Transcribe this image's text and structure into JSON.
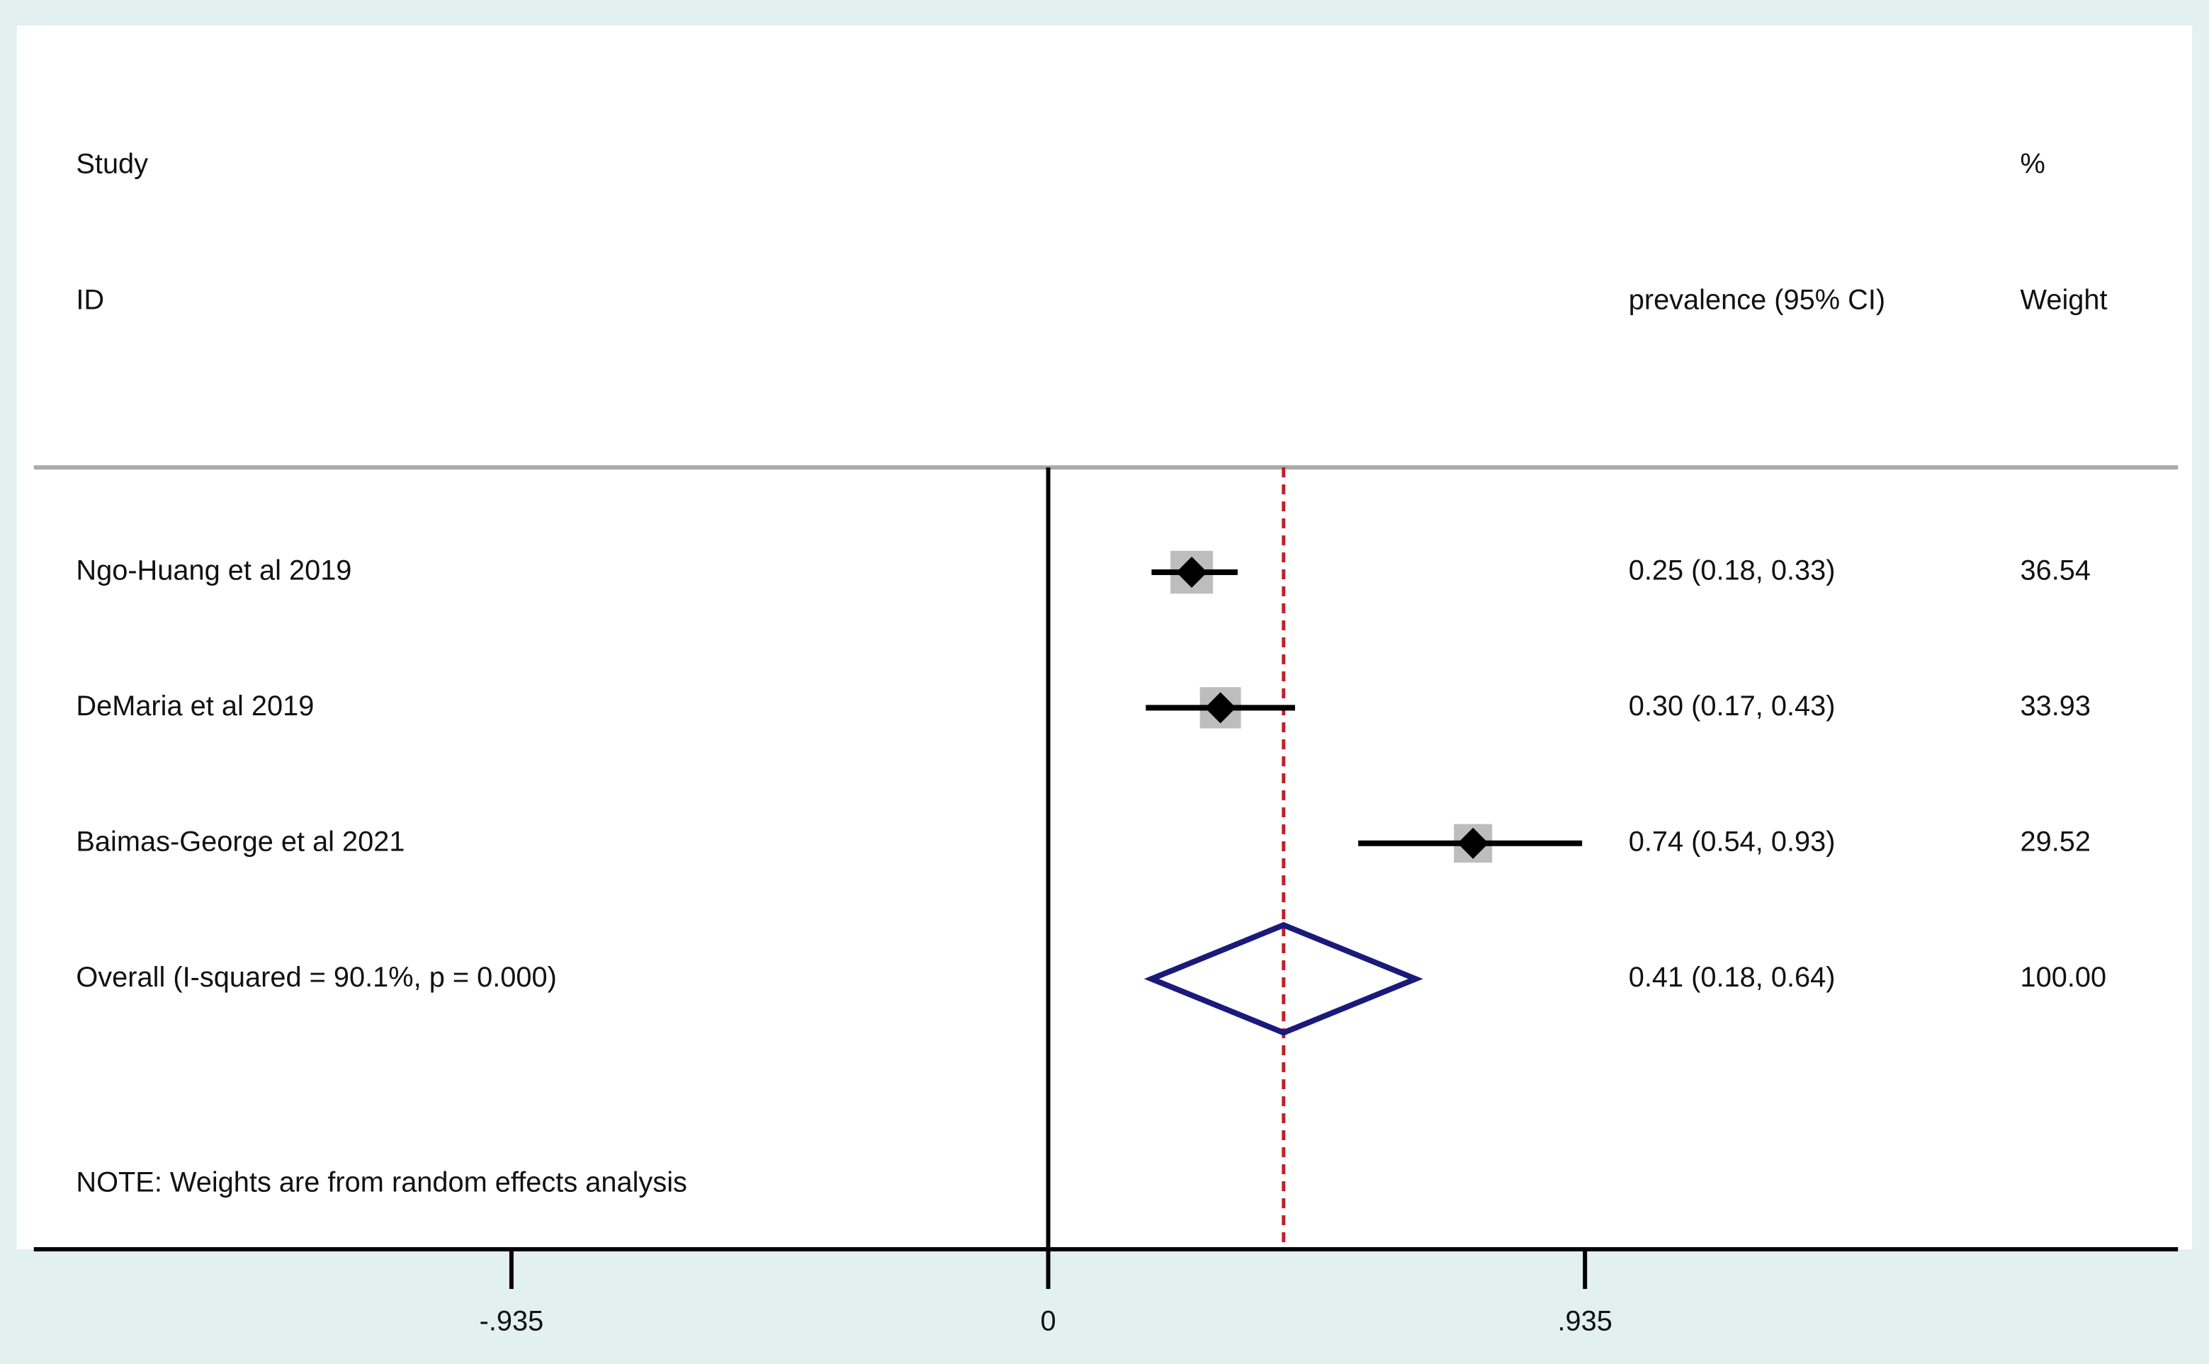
{
  "chart_data": {
    "type": "forest",
    "headers": {
      "study": [
        "Study",
        "ID"
      ],
      "estimate": "prevalence (95% CI)",
      "weight": [
        "%",
        "Weight"
      ]
    },
    "studies": [
      {
        "name": "Ngo-Huang et al 2019",
        "value": 0.25,
        "lower": 0.18,
        "upper": 0.33,
        "label": "0.25 (0.18, 0.33)",
        "weight": 36.54,
        "weight_label": "36.54"
      },
      {
        "name": "DeMaria et al 2019",
        "value": 0.3,
        "lower": 0.17,
        "upper": 0.43,
        "label": "0.30 (0.17, 0.43)",
        "weight": 33.93,
        "weight_label": "33.93"
      },
      {
        "name": "Baimas-George et al 2021",
        "value": 0.74,
        "lower": 0.54,
        "upper": 0.93,
        "label": "0.74 (0.54, 0.93)",
        "weight": 29.52,
        "weight_label": "29.52"
      }
    ],
    "overall": {
      "name": "Overall  (I-squared = 90.1%, p = 0.000)",
      "value": 0.41,
      "lower": 0.18,
      "upper": 0.64,
      "label": "0.41 (0.18, 0.64)",
      "weight": 100,
      "weight_label": "100.00"
    },
    "note": "NOTE: Weights are from random effects analysis",
    "xlim": [
      -1.767,
      1.968
    ],
    "xticks": [
      {
        "value": -0.935,
        "label": "-.935"
      },
      0,
      {
        "value": 0.935,
        "label": ".935"
      }
    ],
    "colors": {
      "box": "#bdbdbd",
      "marker": "#000000",
      "diamond": "#1a1a7a",
      "reference": "#c0202a"
    }
  }
}
